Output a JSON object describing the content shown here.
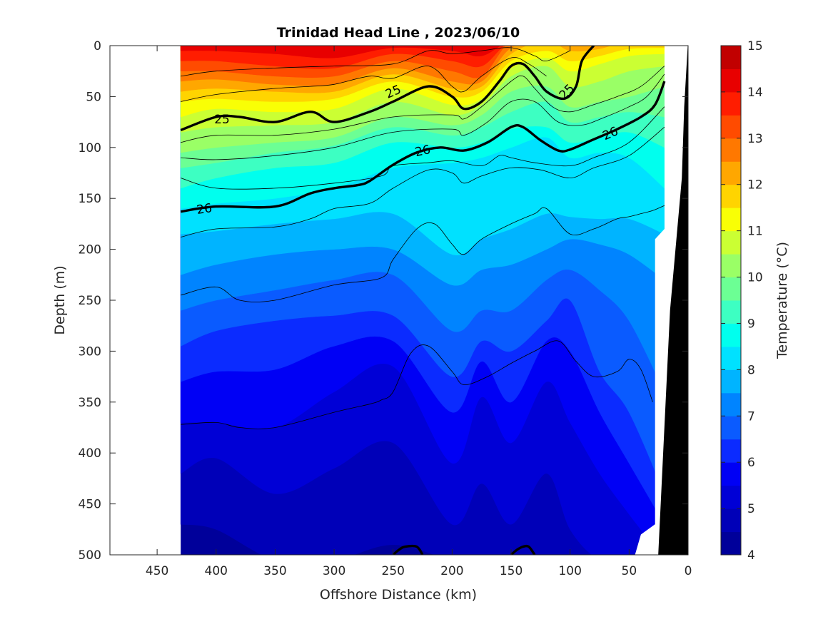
{
  "chart_data": {
    "type": "heatmap",
    "title": "Trinidad Head Line , 2023/06/10",
    "xlabel": "Offshore Distance (km)",
    "ylabel": "Depth (m)",
    "colorbar_label": "Temperature (°C)",
    "xlim": [
      490,
      0
    ],
    "ylim": [
      0,
      500
    ],
    "y_reversed": true,
    "x_ticks": [
      450,
      400,
      350,
      300,
      250,
      200,
      150,
      100,
      50,
      0
    ],
    "y_ticks": [
      0,
      50,
      100,
      150,
      200,
      250,
      300,
      350,
      400,
      450,
      500
    ],
    "colorbar": {
      "min": 4,
      "max": 15,
      "ticks": [
        4,
        5,
        6,
        7,
        8,
        9,
        10,
        11,
        12,
        13,
        14,
        15
      ],
      "levels": [
        {
          "lo": 4,
          "hi": 4.5,
          "color": "#00009a"
        },
        {
          "lo": 4.5,
          "hi": 5,
          "color": "#0000b8"
        },
        {
          "lo": 5,
          "hi": 5.5,
          "color": "#0000d6"
        },
        {
          "lo": 5.5,
          "hi": 6,
          "color": "#0000f5"
        },
        {
          "lo": 6,
          "hi": 6.5,
          "color": "#0b2bff"
        },
        {
          "lo": 6.5,
          "hi": 7,
          "color": "#0a5bff"
        },
        {
          "lo": 7,
          "hi": 7.5,
          "color": "#0084ff"
        },
        {
          "lo": 7.5,
          "hi": 8,
          "color": "#00b4ff"
        },
        {
          "lo": 8,
          "hi": 8.5,
          "color": "#00e1ff"
        },
        {
          "lo": 8.5,
          "hi": 9,
          "color": "#00ffee"
        },
        {
          "lo": 9,
          "hi": 9.5,
          "color": "#3dffc2"
        },
        {
          "lo": 9.5,
          "hi": 10,
          "color": "#6cff94"
        },
        {
          "lo": 10,
          "hi": 10.5,
          "color": "#9aff66"
        },
        {
          "lo": 10.5,
          "hi": 11,
          "color": "#cbff33"
        },
        {
          "lo": 11,
          "hi": 11.5,
          "color": "#f9ff05"
        },
        {
          "lo": 11.5,
          "hi": 12,
          "color": "#ffd400"
        },
        {
          "lo": 12,
          "hi": 12.5,
          "color": "#ffa700"
        },
        {
          "lo": 12.5,
          "hi": 13,
          "color": "#ff7800"
        },
        {
          "lo": 13,
          "hi": 13.5,
          "color": "#ff4b00"
        },
        {
          "lo": 13.5,
          "hi": 14,
          "color": "#ff1d00"
        },
        {
          "lo": 14,
          "hi": 14.5,
          "color": "#e80000"
        },
        {
          "lo": 14.5,
          "hi": 15,
          "color": "#c10000"
        }
      ]
    },
    "data_extent_x": [
      430,
      20
    ],
    "stations_km": [
      430,
      400,
      350,
      300,
      250,
      200,
      175,
      150,
      120,
      100,
      75,
      50,
      20
    ],
    "temperature_isotherm_depths": {
      "4.5": [
        470,
        475,
        505,
        505,
        490,
        505,
        505,
        505,
        505,
        505,
        505,
        505,
        505
      ],
      "5": [
        420,
        405,
        440,
        415,
        390,
        470,
        430,
        470,
        420,
        475,
        505,
        505,
        505
      ],
      "5.5": [
        370,
        370,
        375,
        340,
        315,
        410,
        345,
        390,
        330,
        370,
        420,
        460,
        505
      ],
      "6": [
        330,
        320,
        318,
        295,
        290,
        360,
        310,
        350,
        290,
        300,
        360,
        410,
        470
      ],
      "6.5": [
        295,
        280,
        270,
        265,
        265,
        325,
        290,
        300,
        270,
        250,
        320,
        360,
        440
      ],
      "7": [
        260,
        250,
        240,
        230,
        225,
        280,
        260,
        260,
        230,
        220,
        240,
        270,
        340
      ],
      "7.5": [
        225,
        215,
        205,
        200,
        200,
        235,
        220,
        215,
        200,
        190,
        195,
        205,
        230
      ],
      "8": [
        185,
        182,
        175,
        170,
        165,
        205,
        190,
        180,
        165,
        168,
        170,
        170,
        185
      ],
      "8.5": [
        160,
        155,
        150,
        140,
        120,
        115,
        110,
        100,
        90,
        110,
        105,
        110,
        140
      ],
      "9": [
        140,
        130,
        120,
        115,
        95,
        100,
        95,
        82,
        80,
        95,
        90,
        85,
        100
      ],
      "9.5": [
        120,
        115,
        105,
        98,
        80,
        88,
        80,
        65,
        55,
        75,
        70,
        65,
        70
      ],
      "10": [
        105,
        100,
        95,
        90,
        70,
        78,
        68,
        45,
        40,
        60,
        55,
        50,
        40
      ],
      "10.5": [
        85,
        80,
        78,
        75,
        55,
        68,
        58,
        30,
        20,
        40,
        35,
        25,
        20
      ],
      "11": [
        70,
        62,
        65,
        62,
        42,
        58,
        52,
        22,
        12,
        25,
        18,
        10,
        8
      ],
      "11.5": [
        55,
        52,
        55,
        52,
        35,
        50,
        45,
        15,
        5,
        15,
        10,
        3,
        2
      ],
      "12": [
        45,
        42,
        45,
        45,
        28,
        42,
        40,
        8,
        -5,
        5,
        3,
        -5,
        -5
      ],
      "12.5": [
        35,
        33,
        38,
        38,
        22,
        35,
        35,
        2,
        -5,
        -5,
        -5,
        -5,
        -5
      ],
      "13": [
        25,
        25,
        30,
        30,
        15,
        25,
        30,
        -5,
        -5,
        -5,
        -5,
        -5,
        -5
      ],
      "13.5": [
        15,
        15,
        20,
        22,
        8,
        15,
        20,
        -5,
        -5,
        -5,
        -5,
        -5,
        -5
      ],
      "14": [
        5,
        5,
        8,
        12,
        2,
        5,
        10,
        -5,
        -5,
        -5,
        -5,
        -5,
        -5
      ],
      "14.5": [
        -5,
        -5,
        -5,
        -5,
        -5,
        -5,
        -5,
        -5,
        -5,
        -5,
        -5,
        -5,
        -5
      ]
    },
    "density_contours": [
      {
        "label": "",
        "bold": false,
        "x": [
          430,
          400,
          350,
          300,
          250,
          220,
          200,
          175,
          150,
          130,
          120,
          100
        ],
        "y": [
          30,
          25,
          22,
          20,
          18,
          5,
          8,
          5,
          2,
          10,
          15,
          5
        ]
      },
      {
        "label": "",
        "bold": false,
        "x": [
          430,
          400,
          350,
          320,
          300,
          270,
          250,
          220,
          200,
          190,
          175,
          150,
          135,
          120
        ],
        "y": [
          55,
          48,
          42,
          40,
          38,
          30,
          32,
          20,
          40,
          45,
          30,
          12,
          18,
          30
        ]
      },
      {
        "label": "25",
        "bold": true,
        "x": [
          430,
          400,
          380,
          350,
          320,
          300,
          270,
          250,
          220,
          200,
          190,
          175,
          160,
          150,
          140,
          130,
          120,
          105,
          95,
          90,
          80
        ],
        "y": [
          83,
          70,
          70,
          75,
          65,
          75,
          65,
          55,
          40,
          50,
          62,
          55,
          35,
          20,
          18,
          30,
          45,
          52,
          40,
          15,
          0
        ],
        "label_positions": [
          [
            395,
            72
          ],
          [
            250,
            45
          ],
          [
            103,
            45
          ]
        ]
      },
      {
        "label": "",
        "bold": false,
        "x": [
          430,
          400,
          350,
          300,
          250,
          200,
          190,
          175,
          150,
          140,
          130,
          115,
          100,
          80,
          60,
          40,
          20
        ],
        "y": [
          95,
          88,
          88,
          82,
          70,
          68,
          72,
          60,
          35,
          30,
          42,
          60,
          65,
          58,
          50,
          40,
          20
        ]
      },
      {
        "label": "",
        "bold": false,
        "x": [
          430,
          400,
          350,
          300,
          250,
          200,
          190,
          170,
          150,
          130,
          110,
          90,
          70,
          50,
          35,
          20
        ],
        "y": [
          110,
          112,
          108,
          100,
          85,
          82,
          88,
          75,
          55,
          55,
          75,
          78,
          70,
          60,
          50,
          28
        ]
      },
      {
        "label": "26",
        "bold": true,
        "x": [
          430,
          400,
          350,
          320,
          300,
          280,
          270,
          250,
          230,
          210,
          190,
          170,
          150,
          140,
          125,
          110,
          100,
          80,
          60,
          40,
          28,
          20
        ],
        "y": [
          163,
          158,
          158,
          145,
          140,
          137,
          133,
          117,
          105,
          100,
          103,
          95,
          80,
          80,
          93,
          103,
          102,
          92,
          82,
          70,
          58,
          35
        ],
        "label_positions": [
          [
            410,
            160
          ],
          [
            225,
            103
          ],
          [
            66,
            86
          ]
        ]
      },
      {
        "label": "",
        "bold": false,
        "x": [
          430,
          400,
          350,
          300,
          260,
          250,
          220,
          200,
          175,
          160,
          150,
          130,
          100,
          80,
          50,
          20
        ],
        "y": [
          130,
          140,
          140,
          135,
          128,
          118,
          115,
          113,
          118,
          108,
          110,
          115,
          118,
          110,
          95,
          60
        ]
      },
      {
        "label": "",
        "bold": false,
        "x": [
          430,
          400,
          350,
          320,
          300,
          270,
          250,
          220,
          200,
          190,
          175,
          150,
          125,
          100,
          80,
          50,
          20
        ],
        "y": [
          188,
          180,
          178,
          170,
          160,
          155,
          140,
          122,
          125,
          135,
          128,
          120,
          122,
          130,
          120,
          108,
          80
        ]
      },
      {
        "label": "",
        "bold": false,
        "x": [
          430,
          400,
          380,
          350,
          300,
          260,
          250,
          230,
          215,
          200,
          190,
          175,
          150,
          130,
          120,
          100,
          80,
          60,
          50,
          40,
          30,
          20
        ],
        "y": [
          245,
          237,
          250,
          250,
          235,
          228,
          210,
          180,
          175,
          195,
          205,
          190,
          175,
          165,
          160,
          185,
          180,
          170,
          168,
          165,
          162,
          157
        ]
      },
      {
        "label": "",
        "bold": false,
        "x": [
          430,
          400,
          380,
          350,
          300,
          270,
          260,
          250,
          235,
          220,
          200,
          190,
          170,
          150,
          130,
          110,
          95,
          80,
          60,
          50,
          40,
          30
        ],
        "y": [
          372,
          370,
          375,
          375,
          360,
          352,
          348,
          340,
          302,
          295,
          320,
          333,
          325,
          312,
          300,
          290,
          310,
          325,
          320,
          308,
          318,
          350
        ]
      },
      {
        "label": "",
        "bold": true,
        "x": [
          250,
          245,
          240,
          230,
          225
        ],
        "y": [
          500,
          495,
          492,
          492,
          500
        ]
      },
      {
        "label": "",
        "bold": true,
        "x": [
          150,
          145,
          140,
          135,
          130
        ],
        "y": [
          500,
          495,
          492,
          492,
          500
        ]
      }
    ],
    "bathymetry_black_polygon": {
      "x": [
        25,
        20,
        15,
        5,
        3,
        0,
        0,
        25
      ],
      "y": [
        500,
        380,
        260,
        130,
        60,
        0,
        500,
        500
      ]
    },
    "data_mask_right_edge": {
      "depth": [
        0,
        180,
        190,
        470,
        480,
        500
      ],
      "x": [
        20,
        20,
        28,
        28,
        40,
        45
      ]
    }
  }
}
